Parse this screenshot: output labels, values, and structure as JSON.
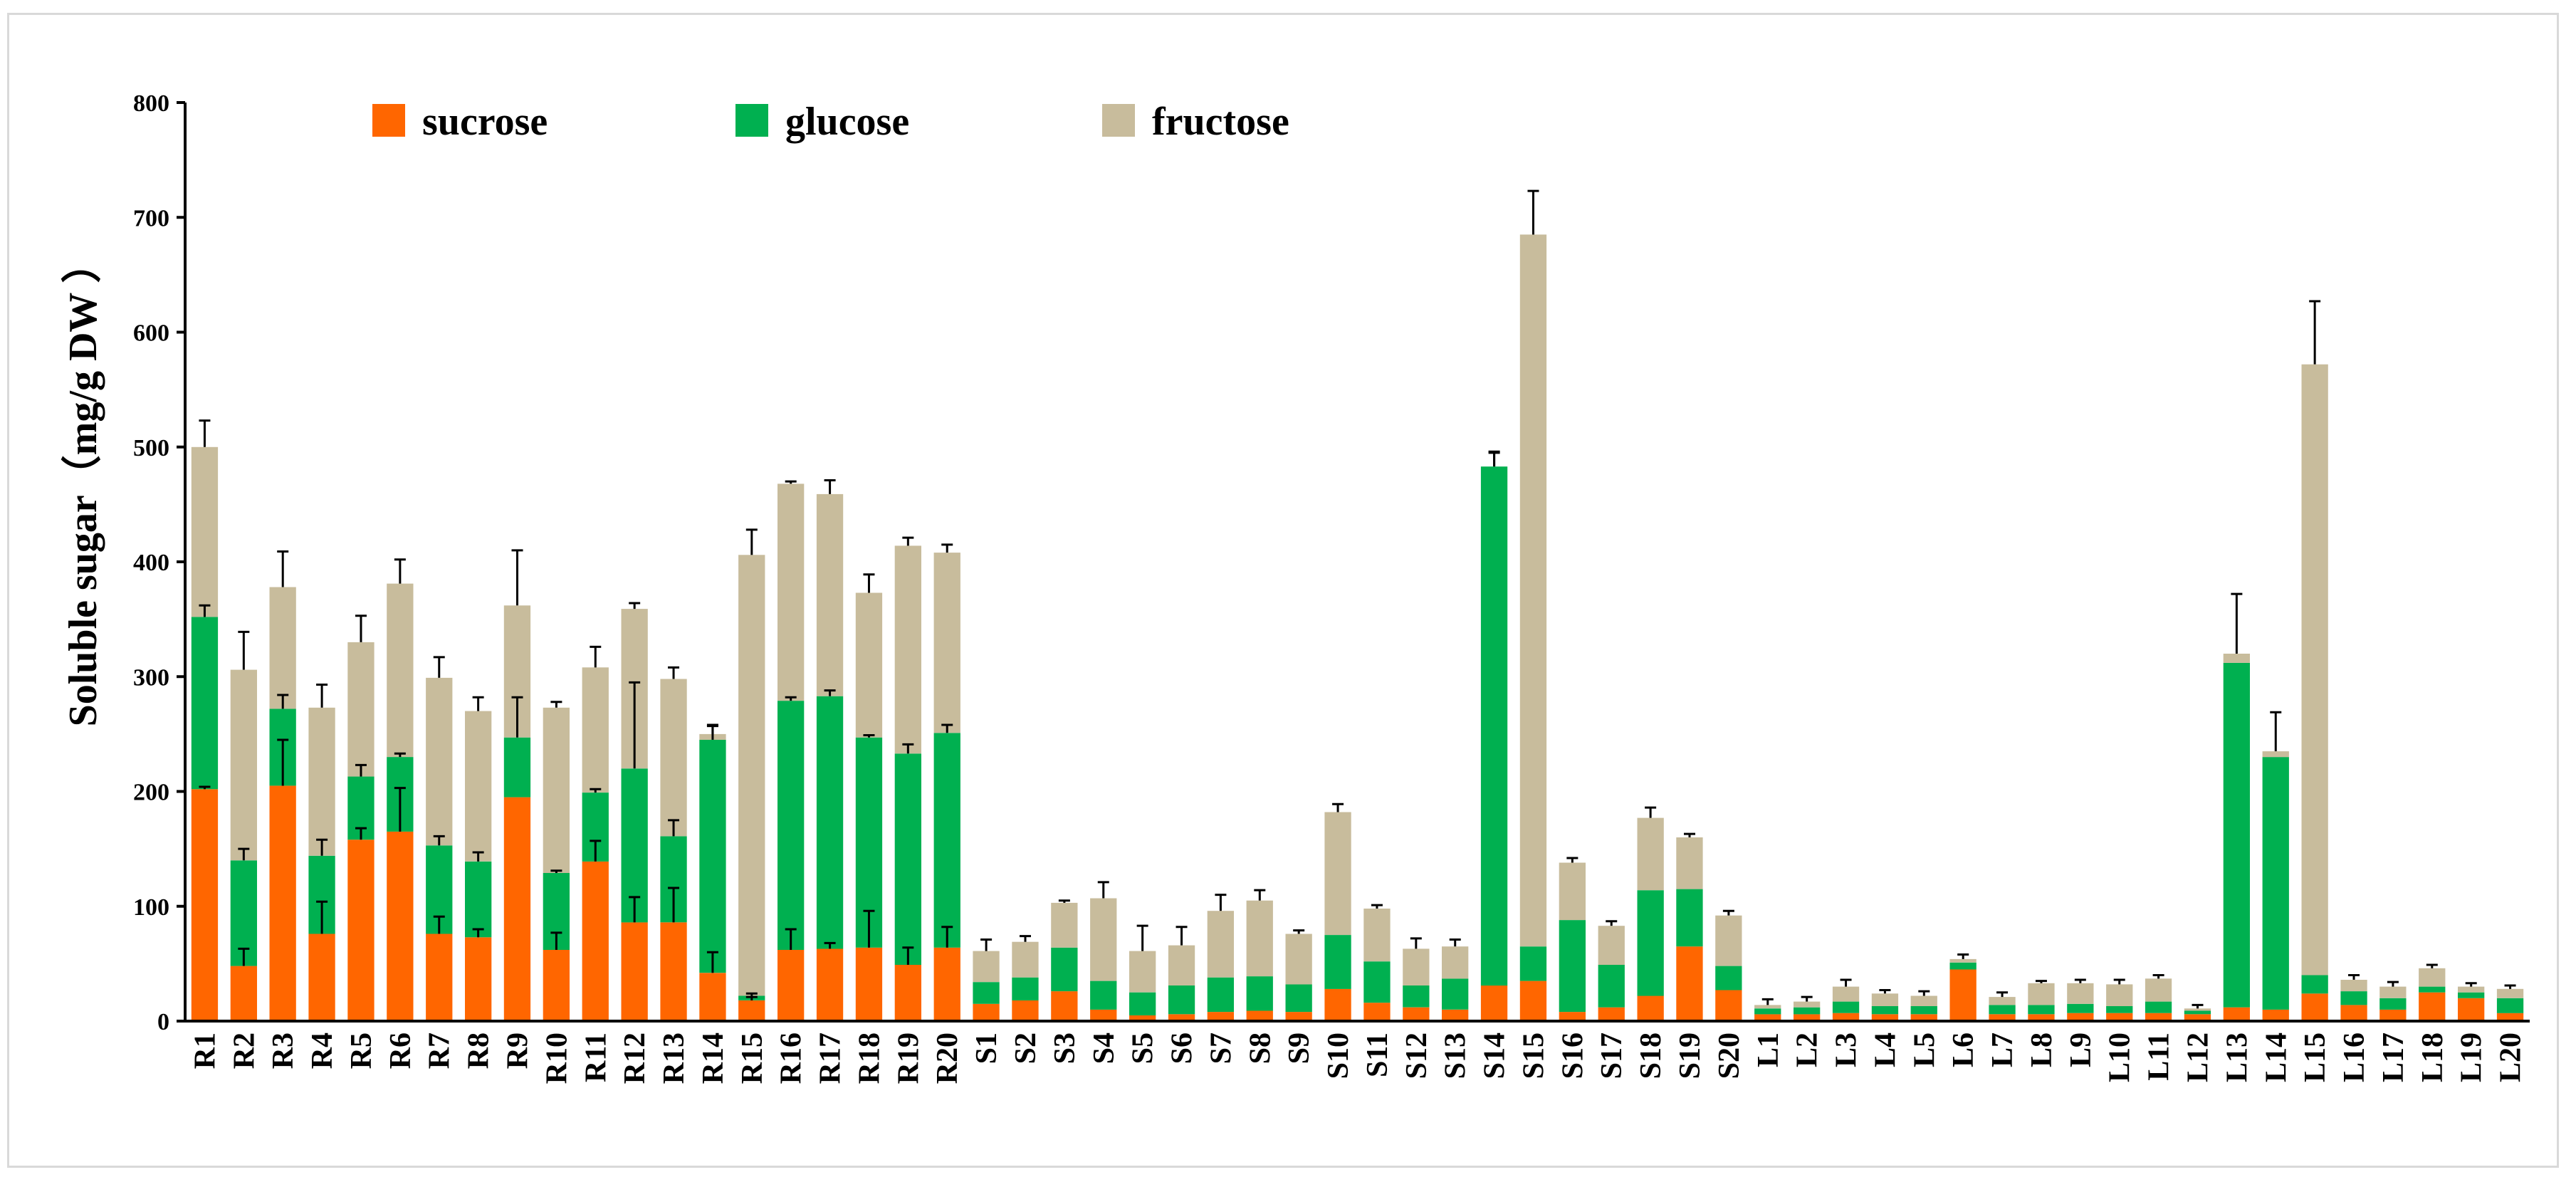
{
  "chart_data": {
    "type": "bar",
    "stacked": true,
    "ylabel": "Soluble sugar（mg/g DW ）",
    "xlabel": "",
    "ylim": [
      0,
      800
    ],
    "yticks": [
      0,
      100,
      200,
      300,
      400,
      500,
      600,
      700,
      800
    ],
    "grid": false,
    "legend_position": "top-center",
    "categories": [
      "R1",
      "R2",
      "R3",
      "R4",
      "R5",
      "R6",
      "R7",
      "R8",
      "R9",
      "R10",
      "R11",
      "R12",
      "R13",
      "R14",
      "R15",
      "R16",
      "R17",
      "R18",
      "R19",
      "R20",
      "S1",
      "S2",
      "S3",
      "S4",
      "S5",
      "S6",
      "S7",
      "S8",
      "S9",
      "S10",
      "S11",
      "S12",
      "S13",
      "S14",
      "S15",
      "S16",
      "S17",
      "S18",
      "S19",
      "S20",
      "L1",
      "L2",
      "L3",
      "L4",
      "L5",
      "L6",
      "L7",
      "L8",
      "L9",
      "L10",
      "L11",
      "L12",
      "L13",
      "L14",
      "L15",
      "L16",
      "L17",
      "L18",
      "L19",
      "L20"
    ],
    "series": [
      {
        "name": "sucrose",
        "color": "#FF6600",
        "values": [
          202,
          48,
          205,
          76,
          158,
          165,
          76,
          73,
          195,
          62,
          139,
          86,
          86,
          42,
          18,
          62,
          63,
          64,
          49,
          64,
          15,
          18,
          26,
          10,
          5,
          6,
          8,
          9,
          8,
          28,
          16,
          12,
          10,
          31,
          35,
          8,
          12,
          22,
          65,
          27,
          6,
          6,
          7,
          6,
          6,
          45,
          6,
          6,
          7,
          7,
          7,
          6,
          12,
          10,
          24,
          14,
          10,
          25,
          20,
          7
        ]
      },
      {
        "name": "glucose",
        "color": "#00B050",
        "values": [
          150,
          92,
          67,
          68,
          55,
          65,
          77,
          66,
          52,
          67,
          60,
          134,
          75,
          203,
          4,
          217,
          220,
          183,
          184,
          187,
          19,
          20,
          38,
          25,
          20,
          25,
          30,
          30,
          24,
          47,
          36,
          19,
          27,
          452,
          30,
          80,
          37,
          92,
          50,
          21,
          5,
          6,
          10,
          7,
          7,
          6,
          8,
          8,
          8,
          6,
          10,
          3,
          300,
          220,
          16,
          12,
          10,
          5,
          5,
          13
        ]
      },
      {
        "name": "fructose",
        "color": "#C8BC9C",
        "values": [
          148,
          166,
          106,
          129,
          117,
          151,
          146,
          131,
          115,
          144,
          109,
          139,
          137,
          5,
          384,
          189,
          176,
          126,
          181,
          157,
          27,
          31,
          39,
          72,
          36,
          35,
          58,
          66,
          44,
          107,
          46,
          32,
          28,
          0,
          620,
          50,
          34,
          63,
          45,
          44,
          3,
          5,
          13,
          11,
          9,
          3,
          7,
          19,
          18,
          19,
          20,
          2,
          8,
          5,
          532,
          10,
          10,
          16,
          5,
          8
        ]
      }
    ],
    "error_bars_total": [
      23,
      33,
      31,
      20,
      23,
      21,
      18,
      12,
      48,
      5,
      18,
      5,
      10,
      8,
      22,
      2,
      12,
      16,
      7,
      7,
      10,
      5,
      2,
      14,
      22,
      16,
      14,
      9,
      3,
      7,
      3,
      9,
      6,
      13,
      38,
      4,
      4,
      9,
      3,
      4,
      5,
      4,
      6,
      3,
      4,
      4,
      4,
      2,
      3,
      4,
      3,
      3,
      52,
      34,
      55,
      4,
      4,
      3,
      3,
      3
    ],
    "error_bars_glucose_top": [
      10,
      10,
      12,
      14,
      10,
      3,
      8,
      8,
      35,
      2,
      3,
      75,
      14,
      12,
      2,
      3,
      5,
      2,
      8,
      7,
      0,
      0,
      0,
      0,
      0,
      0,
      0,
      0,
      0,
      0,
      0,
      0,
      0,
      12,
      0,
      0,
      0,
      0,
      0,
      0,
      0,
      0,
      0,
      0,
      0,
      0,
      0,
      0,
      0,
      0,
      0,
      0,
      0,
      0,
      0,
      0,
      0,
      0,
      0,
      0
    ],
    "error_bars_sucrose_top": [
      2,
      15,
      40,
      28,
      10,
      38,
      15,
      7,
      0,
      15,
      18,
      22,
      30,
      18,
      3,
      18,
      5,
      32,
      15,
      18,
      0,
      0,
      0,
      0,
      0,
      0,
      0,
      0,
      0,
      0,
      0,
      0,
      0,
      0,
      0,
      0,
      0,
      0,
      0,
      0,
      0,
      0,
      0,
      0,
      0,
      0,
      0,
      0,
      0,
      0,
      0,
      0,
      0,
      0,
      0,
      0,
      0,
      0,
      0,
      0
    ]
  }
}
